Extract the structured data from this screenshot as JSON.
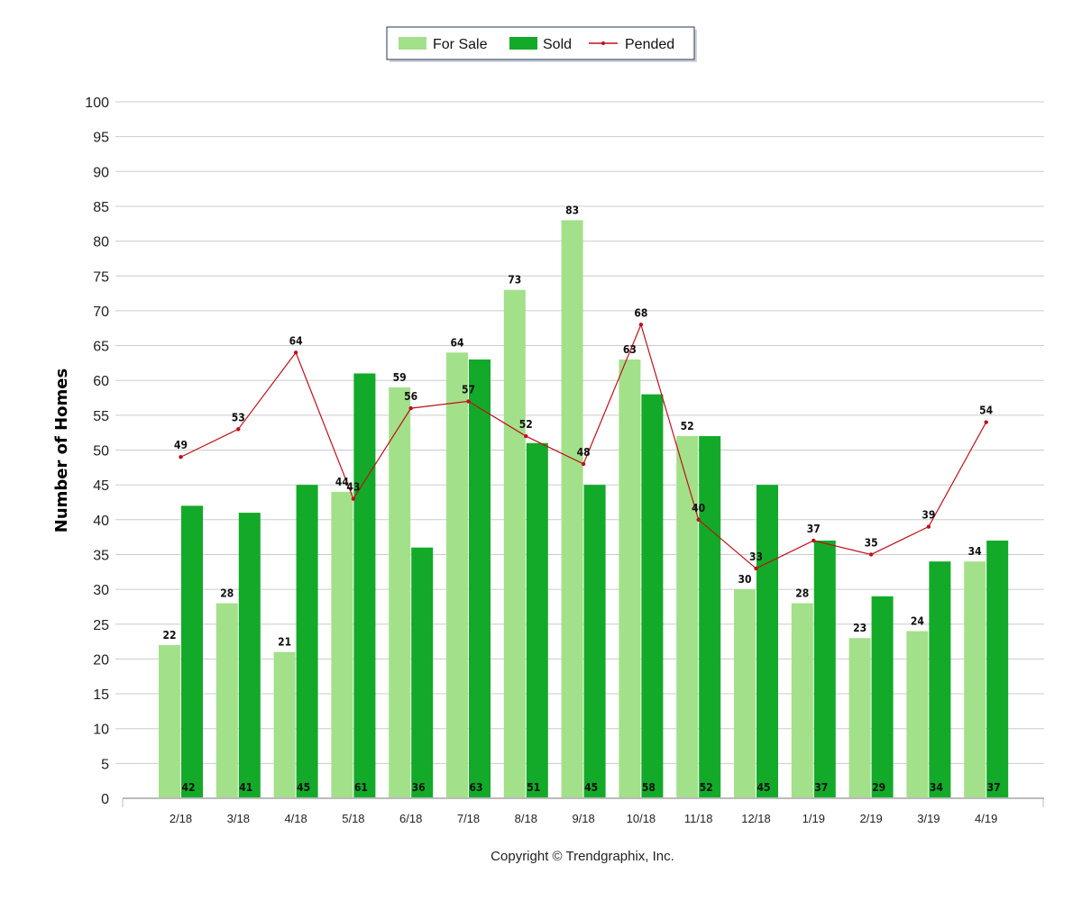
{
  "chart_data": {
    "type": "bar",
    "ylabel": "Number of Homes",
    "ylim": [
      0,
      100
    ],
    "ytick_step": 5,
    "grid": true,
    "legend_placement": "top-center",
    "categories": [
      "2/18",
      "3/18",
      "4/18",
      "5/18",
      "6/18",
      "7/18",
      "8/18",
      "9/18",
      "10/18",
      "11/18",
      "12/18",
      "1/19",
      "2/19",
      "3/19",
      "4/19"
    ],
    "series": [
      {
        "name": "For Sale",
        "kind": "bar",
        "color": "#a3e08a",
        "values": [
          22,
          28,
          21,
          44,
          59,
          64,
          73,
          83,
          63,
          52,
          30,
          28,
          23,
          24,
          34
        ]
      },
      {
        "name": "Sold",
        "kind": "bar",
        "color": "#12aa28",
        "values": [
          42,
          41,
          45,
          61,
          36,
          63,
          51,
          45,
          58,
          52,
          45,
          37,
          29,
          34,
          37
        ]
      },
      {
        "name": "Pended",
        "kind": "line",
        "color": "#c0101a",
        "values": [
          49,
          53,
          64,
          43,
          56,
          57,
          52,
          48,
          68,
          40,
          33,
          37,
          35,
          39,
          54
        ]
      }
    ],
    "footer": "Copyright © Trendgraphix, Inc."
  }
}
